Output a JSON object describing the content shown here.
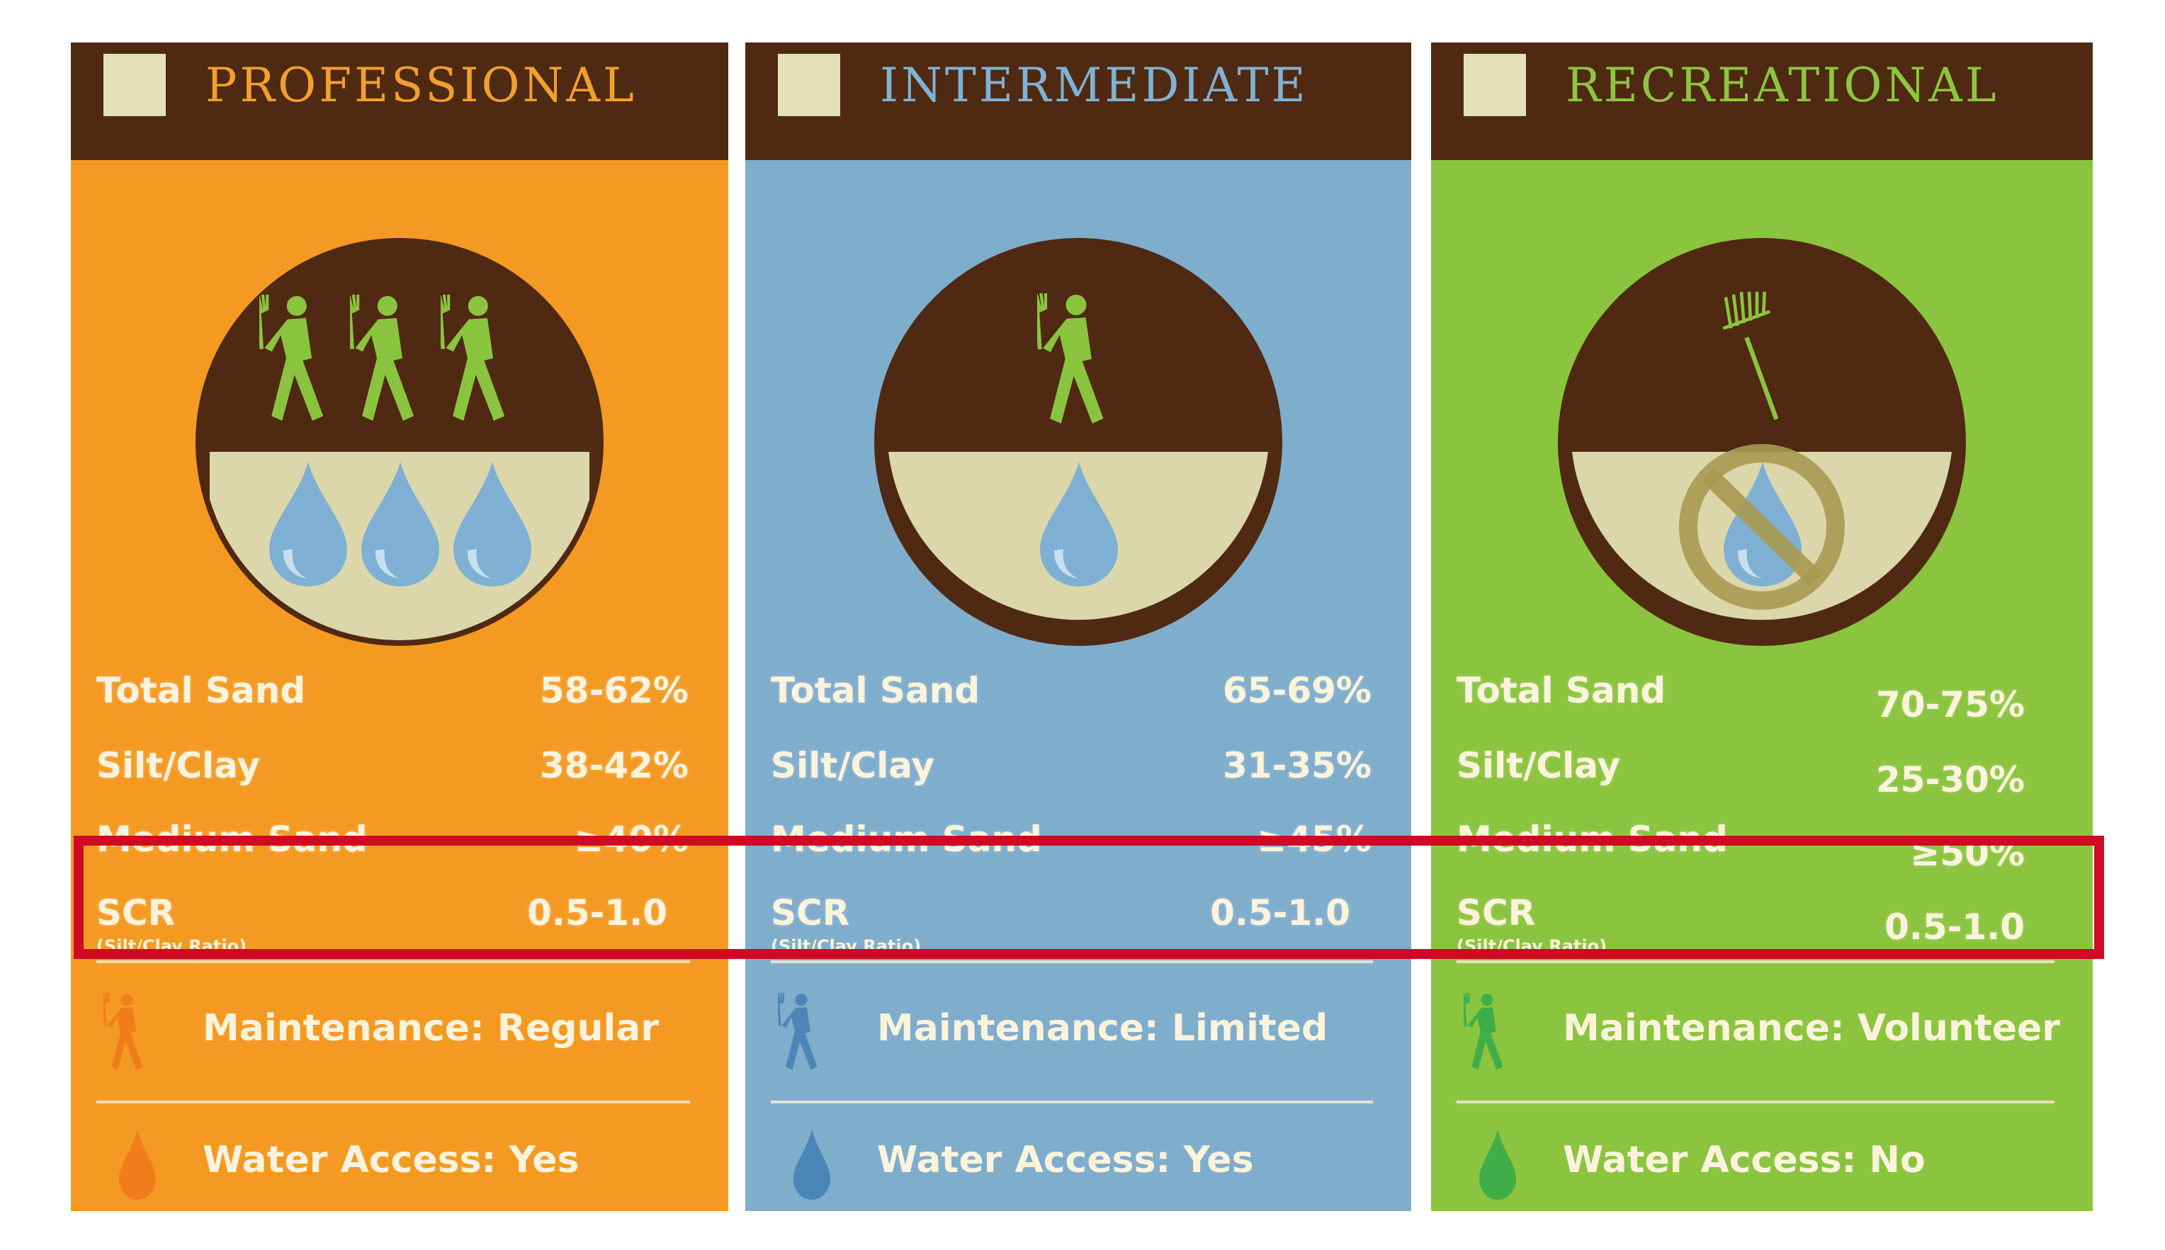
{
  "colors": {
    "header_bg": "#4f2912",
    "header_square": "#e4e0b8",
    "highlight_border": "#cf0a24",
    "text_light": "#fbf3dc"
  },
  "columns": [
    {
      "title": "PROFESSIONAL",
      "title_color": "#f2a02d",
      "panel_color": "#f49a23",
      "icon_color": "#f07d1c",
      "emblem": "three-walkers-with-rakes-three-water-drops",
      "stats": [
        {
          "label": "Total Sand",
          "value": "58-62%"
        },
        {
          "label": "Silt/Clay",
          "value": "38-42%"
        },
        {
          "label": "Medium Sand",
          "value": "≥40%"
        }
      ],
      "scr": {
        "label": "SCR",
        "sublabel": "(Silt/Clay Ratio)",
        "value": "0.5-1.0"
      },
      "maintenance": "Maintenance: Regular",
      "water": "Water Access: Yes"
    },
    {
      "title": "INTERMEDIATE",
      "title_color": "#7fb2d4",
      "panel_color": "#7fadcc",
      "icon_color": "#4a86b8",
      "emblem": "one-walker-with-rake-one-water-drop",
      "stats": [
        {
          "label": "Total Sand",
          "value": "65-69%"
        },
        {
          "label": "Silt/Clay",
          "value": "31-35%"
        },
        {
          "label": "Medium Sand",
          "value": "≥45%"
        }
      ],
      "scr": {
        "label": "SCR",
        "sublabel": "(Silt/Clay Ratio)",
        "value": "0.5-1.0"
      },
      "maintenance": "Maintenance: Limited",
      "water": "Water Access: Yes"
    },
    {
      "title": "RECREATIONAL",
      "title_color": "#8cc63f",
      "panel_color": "#8bc43e",
      "icon_color": "#3fae49",
      "emblem": "rake-only-no-water-symbol",
      "stats": [
        {
          "label": "Total Sand",
          "value": "70-75%"
        },
        {
          "label": "Silt/Clay",
          "value": "25-30%"
        },
        {
          "label": "Medium Sand",
          "value": "≥50%"
        }
      ],
      "scr": {
        "label": "SCR",
        "sublabel": "(Silt/Clay Ratio)",
        "value": "0.5-1.0"
      },
      "maintenance": "Maintenance: Volunteer",
      "water": "Water Access: No"
    }
  ]
}
